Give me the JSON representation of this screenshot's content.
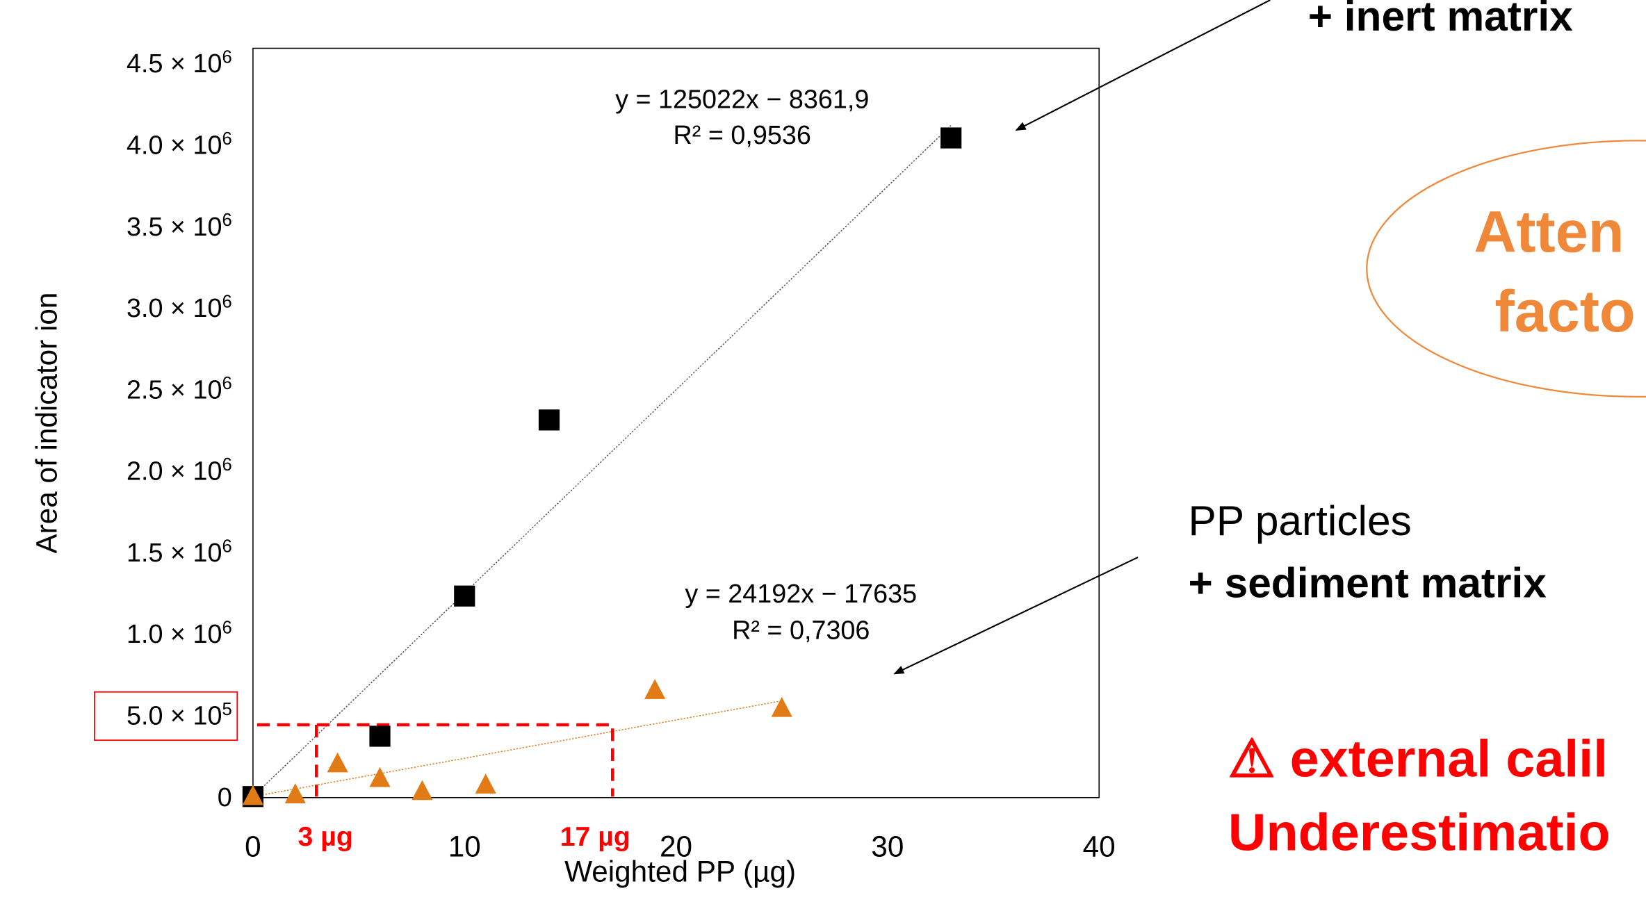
{
  "chart_data": {
    "type": "scatter",
    "xlabel": "Weighted PP (µg)",
    "ylabel": "Area of indicator ion",
    "xlim": [
      0,
      40
    ],
    "ylim": [
      0,
      4500000
    ],
    "x_ticks": [
      "0",
      "10",
      "20",
      "30",
      "40"
    ],
    "x_tick_values": [
      0,
      10,
      20,
      30,
      40
    ],
    "y_ticks": [
      "0",
      "5.0 × 10",
      "1.0 × 10",
      "1.5 × 10",
      "2.0 × 10",
      "2.5 × 10",
      "3.0 × 10",
      "3.5 × 10",
      "4.0 × 10",
      "4.5 × 10"
    ],
    "y_tick_exponents": [
      "",
      "5",
      "6",
      "6",
      "6",
      "6",
      "6",
      "6",
      "6",
      "6"
    ],
    "y_tick_values": [
      0,
      500000,
      1000000,
      1500000,
      2000000,
      2500000,
      3000000,
      3500000,
      4000000,
      4500000
    ],
    "highlighted_y_tick": "5.0 × 10",
    "grid": false,
    "series": [
      {
        "color": "#000000",
        "marker": "square",
        "x": [
          0,
          6,
          10,
          14,
          33
        ],
        "y": [
          0,
          370000,
          1230000,
          2310000,
          4040000
        ],
        "trendline": {
          "x0": 0,
          "x1": 33,
          "slope": 125022,
          "intercept": -8361.9
        },
        "equation": "y = 125022x − 8361,9",
        "r2": "R² = 0,9536"
      },
      {
        "color": "#E07B16",
        "marker": "triangle",
        "x": [
          0,
          2,
          4,
          6,
          8,
          11,
          19,
          25
        ],
        "y": [
          0,
          10000,
          200000,
          110000,
          30000,
          70000,
          650000,
          540000
        ],
        "trendline": {
          "x0": 0,
          "x1": 25,
          "slope": 24192,
          "intercept": -17635
        },
        "equation": "y = 24192x − 17635",
        "r2": "R² = 0,7306"
      }
    ],
    "annotations": {
      "threshold_y": 440000,
      "threshold_x": [
        3,
        17
      ],
      "x_markers": [
        "3 µg",
        "17 µg"
      ],
      "color": "#FF0000"
    }
  },
  "callouts": {
    "inert_matrix": "+ inert matrix",
    "pp_particles": "PP particles",
    "sediment_matrix": "+ sediment matrix",
    "attenuation_line1": "Atten",
    "attenuation_line2": "facto",
    "warning_line1": "⚠ external calil",
    "warning_line2": "Underestimatio"
  },
  "colors": {
    "orange_text": "#F0883A",
    "orange_outline": "#F0883A",
    "red": "#FF0000"
  }
}
